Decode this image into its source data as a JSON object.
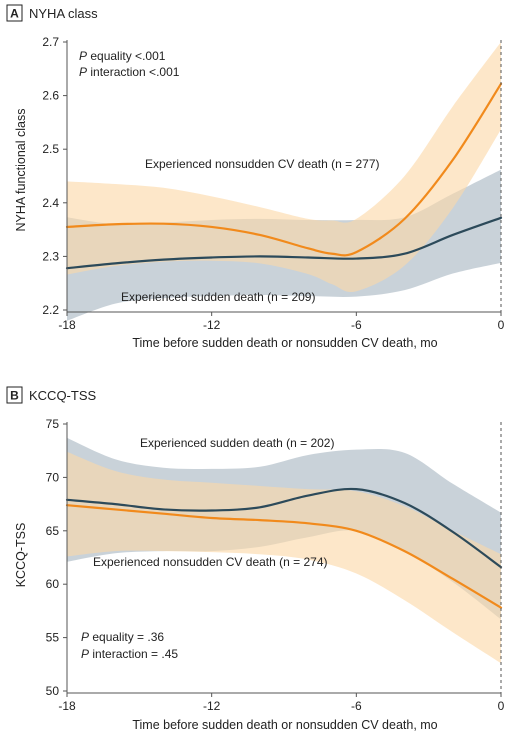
{
  "chart_data": [
    {
      "type": "line",
      "panel_letter": "A",
      "panel_title": "NYHA class",
      "xlabel": "Time before sudden death or nonsudden CV death, mo",
      "ylabel": "NYHA functional class",
      "xlim": [
        -18,
        0
      ],
      "ylim": [
        2.2,
        2.7
      ],
      "xticks": [
        -18,
        -12,
        -6,
        0
      ],
      "yticks": [
        2.2,
        2.3,
        2.4,
        2.5,
        2.6,
        2.7
      ],
      "ytick_decimals": 1,
      "stats": [
        "equality <.001",
        "interaction <.001"
      ],
      "stats_prefix": "P",
      "stats_position": "top-left",
      "grid": false,
      "series": [
        {
          "color": "#2c4a5a",
          "band_color": "#a8b6c2",
          "x": [
            -18,
            -16,
            -14,
            -12,
            -10,
            -8,
            -6,
            -4,
            -2,
            0
          ],
          "values": [
            2.278,
            2.287,
            2.294,
            2.298,
            2.3,
            2.298,
            2.296,
            2.305,
            2.34,
            2.372
          ],
          "lower": [
            2.18,
            2.212,
            2.222,
            2.226,
            2.228,
            2.226,
            2.225,
            2.237,
            2.268,
            2.288
          ],
          "upper": [
            2.373,
            2.36,
            2.363,
            2.368,
            2.37,
            2.368,
            2.368,
            2.373,
            2.417,
            2.462
          ]
        },
        {
          "color": "#f18a1c",
          "band_color": "#fcd8a8",
          "x": [
            -18,
            -16,
            -14,
            -12,
            -10,
            -8,
            -7,
            -6,
            -4,
            -2,
            0
          ],
          "values": [
            2.355,
            2.36,
            2.361,
            2.355,
            2.34,
            2.315,
            2.305,
            2.308,
            2.37,
            2.48,
            2.622
          ],
          "lower": [
            2.266,
            2.282,
            2.29,
            2.292,
            2.287,
            2.267,
            2.248,
            2.235,
            2.283,
            2.39,
            2.537
          ],
          "upper": [
            2.44,
            2.435,
            2.428,
            2.412,
            2.392,
            2.37,
            2.367,
            2.37,
            2.45,
            2.58,
            2.7
          ]
        }
      ],
      "annotations": [
        "Experienced nonsudden CV death (n = 277)",
        "Experienced sudden death (n = 209)"
      ]
    },
    {
      "type": "line",
      "panel_letter": "B",
      "panel_title": "KCCQ-TSS",
      "xlabel": "Time before sudden death or nonsudden CV death, mo",
      "ylabel": "KCCQ-TSS",
      "xlim": [
        -18,
        0
      ],
      "ylim": [
        50,
        75
      ],
      "xticks": [
        -18,
        -12,
        -6,
        0
      ],
      "yticks": [
        50,
        55,
        60,
        65,
        70,
        75
      ],
      "ytick_decimals": 0,
      "stats": [
        "equality = .36",
        "interaction = .45"
      ],
      "stats_prefix": "P",
      "stats_position": "bottom-left",
      "grid": false,
      "series": [
        {
          "color": "#2c4a5a",
          "band_color": "#a8b6c2",
          "x": [
            -18,
            -16,
            -14,
            -12,
            -10,
            -8,
            -6,
            -4,
            -2,
            0
          ],
          "values": [
            67.9,
            67.5,
            67.0,
            66.9,
            67.2,
            68.3,
            68.9,
            67.6,
            64.9,
            61.6
          ],
          "lower": [
            62.1,
            62.9,
            63.1,
            63.1,
            63.5,
            64.4,
            65.0,
            63.1,
            60.2,
            56.7
          ],
          "upper": [
            73.7,
            71.7,
            70.9,
            70.8,
            71.0,
            72.1,
            72.6,
            72.3,
            69.4,
            66.7
          ]
        },
        {
          "color": "#f18a1c",
          "band_color": "#fcd8a8",
          "x": [
            -18,
            -16,
            -14,
            -12,
            -10,
            -8,
            -6,
            -4,
            -2,
            0
          ],
          "values": [
            67.4,
            67.0,
            66.6,
            66.2,
            66.0,
            65.7,
            65.0,
            63.1,
            60.5,
            57.8
          ],
          "lower": [
            62.6,
            63.1,
            63.1,
            63.0,
            62.8,
            62.3,
            61.0,
            58.5,
            55.5,
            52.6
          ],
          "upper": [
            72.4,
            70.6,
            69.8,
            69.5,
            69.2,
            68.9,
            68.7,
            67.3,
            65.0,
            62.8
          ]
        }
      ],
      "annotations": [
        "Experienced sudden death (n = 202)",
        "Experienced nonsudden CV death (n = 274)"
      ]
    }
  ]
}
